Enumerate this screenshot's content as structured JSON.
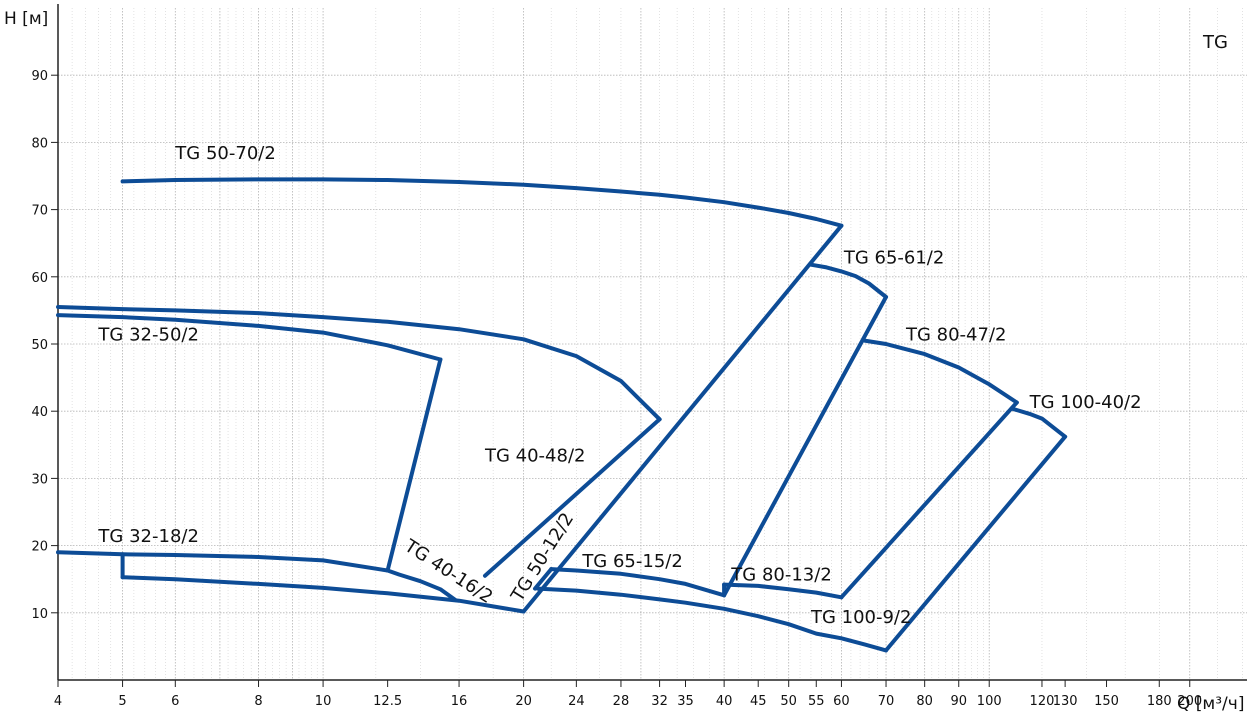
{
  "chart_data": {
    "type": "line",
    "title": "",
    "corner_label": "TG",
    "ylabel": "H [м]",
    "xlabel": "Q [м³/ч]",
    "x_scale": "log",
    "grid": true,
    "xlim": [
      4,
      280
    ],
    "ylim": [
      0,
      100
    ],
    "x_ticks": [
      "4",
      "5",
      "6",
      "8",
      "10",
      "12.5",
      "16",
      "20",
      "24",
      "28",
      "32",
      "35",
      "40",
      "45",
      "50",
      "55",
      "60",
      "70",
      "80",
      "90",
      "100",
      "120",
      "130",
      "150",
      "180",
      "200"
    ],
    "y_ticks": [
      "10",
      "20",
      "30",
      "40",
      "50",
      "60",
      "70",
      "80",
      "90"
    ],
    "series": [
      {
        "name": "TG 50-70/2",
        "points": [
          [
            5,
            74.2
          ],
          [
            6,
            74.4
          ],
          [
            8,
            74.5
          ],
          [
            10,
            74.5
          ],
          [
            12.5,
            74.4
          ],
          [
            16,
            74.1
          ],
          [
            20,
            73.7
          ],
          [
            24,
            73.2
          ],
          [
            28,
            72.7
          ],
          [
            32,
            72.2
          ],
          [
            35,
            71.8
          ],
          [
            40,
            71.1
          ],
          [
            45,
            70.3
          ],
          [
            50,
            69.5
          ],
          [
            55,
            68.6
          ],
          [
            60,
            67.6
          ]
        ]
      },
      {
        "name": "TG 65-61/2",
        "points": [
          [
            54,
            61.8
          ],
          [
            57,
            61.4
          ],
          [
            60,
            60.8
          ],
          [
            63,
            60.1
          ],
          [
            66,
            59.0
          ],
          [
            70,
            57.0
          ]
        ]
      },
      {
        "name": "TG 80-47/2",
        "points": [
          [
            65,
            50.5
          ],
          [
            70,
            50.0
          ],
          [
            80,
            48.5
          ],
          [
            90,
            46.5
          ],
          [
            100,
            44.0
          ],
          [
            110,
            41.3
          ]
        ]
      },
      {
        "name": "TG 100-40/2",
        "points": [
          [
            108,
            40.4
          ],
          [
            115,
            39.6
          ],
          [
            120,
            38.9
          ],
          [
            130,
            36.2
          ]
        ]
      },
      {
        "name": "TG 40-48/2",
        "points": [
          [
            4,
            55.5
          ],
          [
            5,
            55.2
          ],
          [
            6,
            55.0
          ],
          [
            8,
            54.6
          ],
          [
            10,
            54.0
          ],
          [
            12.5,
            53.3
          ],
          [
            16,
            52.2
          ],
          [
            20,
            50.7
          ],
          [
            24,
            48.2
          ],
          [
            28,
            44.5
          ],
          [
            32,
            38.8
          ]
        ]
      },
      {
        "name": "TG 32-50/2",
        "points": [
          [
            4,
            54.3
          ],
          [
            5,
            54.0
          ],
          [
            6,
            53.6
          ],
          [
            8,
            52.7
          ],
          [
            10,
            51.7
          ],
          [
            12.5,
            49.8
          ],
          [
            15,
            47.7
          ]
        ]
      },
      {
        "name": "TG 32-18/2",
        "points": [
          [
            4,
            19.0
          ],
          [
            5,
            18.7
          ],
          [
            6,
            18.6
          ],
          [
            8,
            18.3
          ],
          [
            10,
            17.8
          ],
          [
            12.5,
            16.3
          ]
        ]
      },
      {
        "name": "TG 40-16/2",
        "points": [
          [
            12.5,
            16.3
          ],
          [
            13,
            15.7
          ],
          [
            14,
            14.7
          ],
          [
            15,
            13.5
          ],
          [
            15.8,
            11.9
          ]
        ]
      },
      {
        "name": "TG 50-12/2",
        "points": [
          [
            5,
            15.3
          ],
          [
            6,
            15.0
          ],
          [
            8,
            14.3
          ],
          [
            10,
            13.7
          ],
          [
            12.5,
            12.9
          ],
          [
            16,
            11.8
          ],
          [
            20,
            10.2
          ]
        ]
      },
      {
        "name": "TG 65-15/2",
        "points": [
          [
            22,
            16.5
          ],
          [
            24,
            16.3
          ],
          [
            28,
            15.8
          ],
          [
            32,
            15.0
          ],
          [
            35,
            14.3
          ],
          [
            40,
            12.6
          ]
        ]
      },
      {
        "name": "TG 80-13/2",
        "points": [
          [
            40,
            14.2
          ],
          [
            45,
            14.0
          ],
          [
            50,
            13.5
          ],
          [
            55,
            13.0
          ],
          [
            60,
            12.3
          ]
        ]
      },
      {
        "name": "TG 100-9/2",
        "points": [
          [
            21,
            13.6
          ],
          [
            24,
            13.3
          ],
          [
            28,
            12.7
          ],
          [
            32,
            12.0
          ],
          [
            35,
            11.5
          ],
          [
            40,
            10.6
          ],
          [
            45,
            9.5
          ],
          [
            50,
            8.3
          ],
          [
            55,
            6.9
          ],
          [
            60,
            6.2
          ],
          [
            65,
            5.3
          ],
          [
            70,
            4.4
          ]
        ]
      }
    ],
    "connectors": [
      {
        "points": [
          [
            15,
            47.7
          ],
          [
            12.5,
            16.3
          ]
        ]
      },
      {
        "points": [
          [
            32,
            38.8
          ],
          [
            17.5,
            15.5
          ]
        ]
      },
      {
        "points": [
          [
            60,
            67.6
          ],
          [
            20,
            10.2
          ]
        ]
      },
      {
        "points": [
          [
            70,
            57.0
          ],
          [
            40,
            12.6
          ]
        ]
      },
      {
        "points": [
          [
            110,
            41.3
          ],
          [
            60,
            12.3
          ]
        ]
      },
      {
        "points": [
          [
            130,
            36.2
          ],
          [
            70,
            4.4
          ]
        ]
      },
      {
        "points": [
          [
            5,
            18.7
          ],
          [
            5,
            15.3
          ]
        ]
      },
      {
        "points": [
          [
            22,
            16.5
          ],
          [
            20.8,
            13.6
          ]
        ]
      },
      {
        "points": [
          [
            40,
            14.2
          ],
          [
            40,
            12.6
          ]
        ]
      }
    ],
    "labels": [
      {
        "text": "TG 50-70/2",
        "at": [
          6,
          77.5
        ],
        "rotate": 0
      },
      {
        "text": "TG 65-61/2",
        "at": [
          60.5,
          62
        ],
        "rotate": 0
      },
      {
        "text": "TG 80-47/2",
        "at": [
          75,
          50.5
        ],
        "rotate": 0
      },
      {
        "text": "TG 100-40/2",
        "at": [
          115,
          40.5
        ],
        "rotate": 0
      },
      {
        "text": "TG 32-50/2",
        "at": [
          4.6,
          50.5
        ],
        "rotate": 0
      },
      {
        "text": "TG 40-48/2",
        "at": [
          17.5,
          32.5
        ],
        "rotate": 0
      },
      {
        "text": "TG 32-18/2",
        "at": [
          4.6,
          20.5
        ],
        "rotate": 0
      },
      {
        "text": "TG 40-16/2",
        "at": [
          13.2,
          19.5
        ],
        "rotate": 33
      },
      {
        "text": "TG 50-12/2",
        "at": [
          19.8,
          11.5
        ],
        "rotate": -58
      },
      {
        "text": "TG 65-15/2",
        "at": [
          24.5,
          16.8
        ],
        "rotate": 0
      },
      {
        "text": "TG 80-13/2",
        "at": [
          41,
          14.8
        ],
        "rotate": 0
      },
      {
        "text": "TG 100-9/2",
        "at": [
          54,
          8.5
        ],
        "rotate": 0
      }
    ],
    "line_color": "#0d4c96",
    "grid_color": "#b4b4b4"
  }
}
